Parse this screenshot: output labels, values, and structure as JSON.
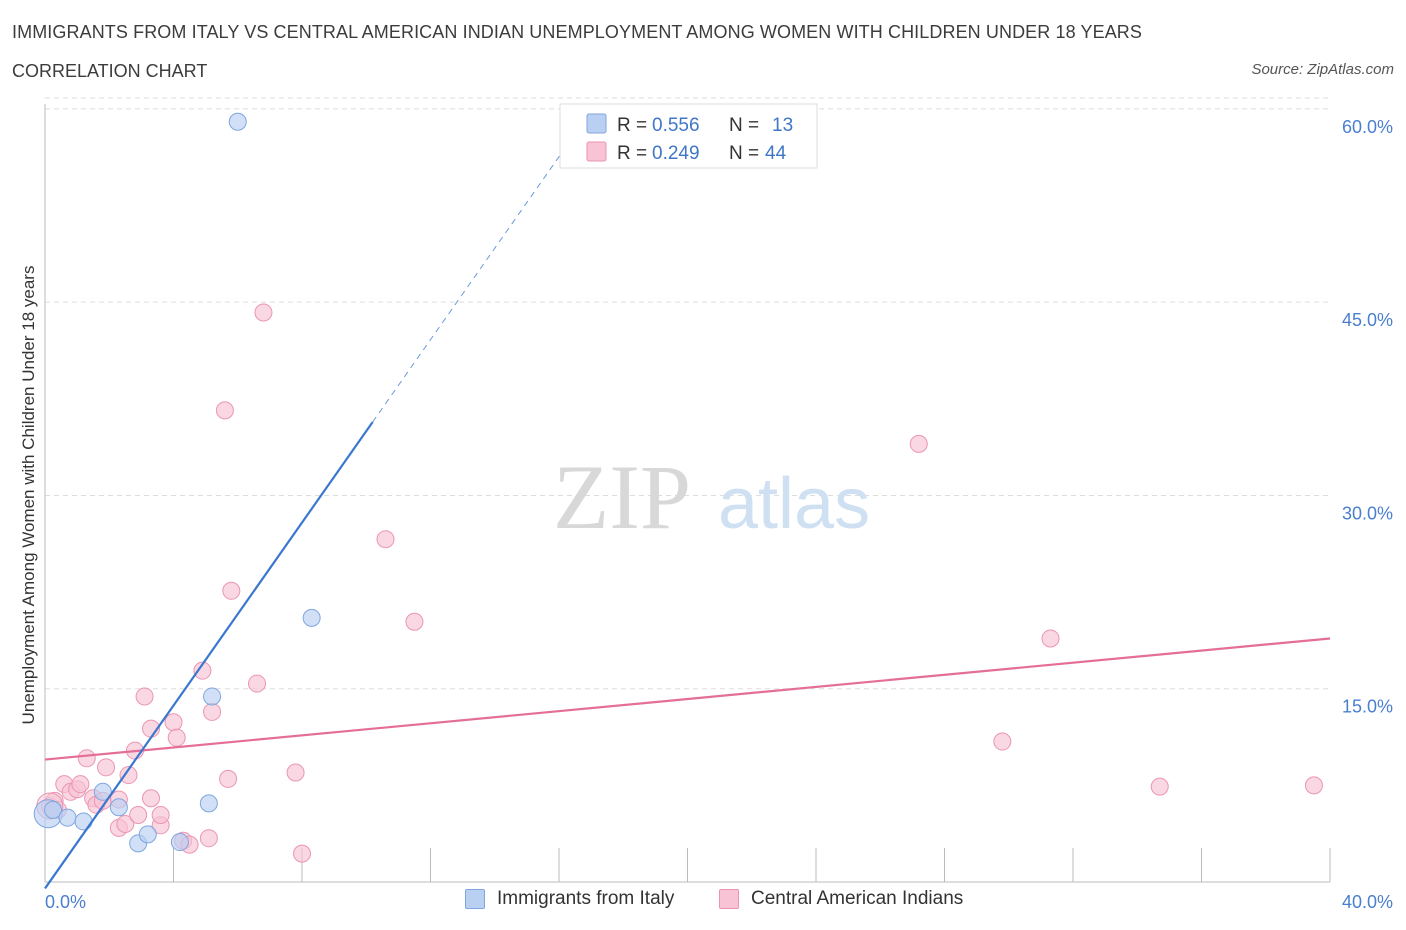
{
  "header": {
    "title": "IMMIGRANTS FROM ITALY VS CENTRAL AMERICAN INDIAN UNEMPLOYMENT AMONG WOMEN WITH CHILDREN UNDER 18 YEARS",
    "subtitle": "CORRELATION CHART",
    "source": "Source: ZipAtlas.com"
  },
  "colors": {
    "italy_fill": "#b9d0f2",
    "italy_stroke": "#7fa6dd",
    "italy_line": "#3a78d0",
    "cai_fill": "#f8c3d4",
    "cai_stroke": "#eb95b1",
    "cai_line": "#e46e98",
    "grid": "#dddddd",
    "tick_text": "#4a7fd0"
  },
  "legend_box": {
    "rows": [
      {
        "r_label": "R =",
        "r_value": "0.556",
        "n_label": "N =",
        "n_value": "13"
      },
      {
        "r_label": "R =",
        "r_value": "0.249",
        "n_label": "N =",
        "n_value": "44"
      }
    ]
  },
  "bottom_legend": {
    "italy": "Immigrants from Italy",
    "cai": "Central American Indians"
  },
  "watermark": {
    "zip": "ZIP",
    "atlas": "atlas"
  },
  "chart_data": {
    "type": "scatter",
    "title": "IMMIGRANTS FROM ITALY VS CENTRAL AMERICAN INDIAN UNEMPLOYMENT AMONG WOMEN WITH CHILDREN UNDER 18 YEARS",
    "subtitle": "CORRELATION CHART",
    "xlabel": "",
    "ylabel": "Unemployment Among Women with Children Under 18 years",
    "xlim": [
      0,
      40
    ],
    "ylim": [
      0,
      61
    ],
    "x_tick_labels": [
      "0.0%",
      "40.0%"
    ],
    "y_ticks": [
      15,
      30,
      45,
      60
    ],
    "y_tick_labels": [
      "15.0%",
      "30.0%",
      "45.0%",
      "60.0%"
    ],
    "grid": true,
    "legend_placement": "top-center",
    "series": [
      {
        "name": "Immigrants from Italy",
        "R": 0.556,
        "N": 13,
        "points": [
          {
            "x": 0.1,
            "y": 5.3
          },
          {
            "x": 0.25,
            "y": 5.6
          },
          {
            "x": 0.7,
            "y": 5.0
          },
          {
            "x": 1.2,
            "y": 4.7
          },
          {
            "x": 1.8,
            "y": 7.0
          },
          {
            "x": 2.3,
            "y": 5.8
          },
          {
            "x": 2.9,
            "y": 3.0
          },
          {
            "x": 3.2,
            "y": 3.7
          },
          {
            "x": 4.2,
            "y": 3.1
          },
          {
            "x": 5.1,
            "y": 6.1
          },
          {
            "x": 5.2,
            "y": 14.4
          },
          {
            "x": 6.0,
            "y": 59.0
          },
          {
            "x": 8.3,
            "y": 20.5
          }
        ],
        "trend": {
          "x0": 0,
          "y0": -0.5,
          "x1": 10.2,
          "y1": 35.7,
          "dashed_to_x": 17.0
        }
      },
      {
        "name": "Central American Indians",
        "R": 0.249,
        "N": 44,
        "points": [
          {
            "x": 0.15,
            "y": 5.9
          },
          {
            "x": 0.3,
            "y": 6.3
          },
          {
            "x": 0.4,
            "y": 5.6
          },
          {
            "x": 0.6,
            "y": 7.6
          },
          {
            "x": 0.8,
            "y": 7.0
          },
          {
            "x": 1.0,
            "y": 7.2
          },
          {
            "x": 1.1,
            "y": 7.6
          },
          {
            "x": 1.3,
            "y": 9.6
          },
          {
            "x": 1.5,
            "y": 6.5
          },
          {
            "x": 1.6,
            "y": 6.0
          },
          {
            "x": 1.8,
            "y": 6.3
          },
          {
            "x": 1.9,
            "y": 8.9
          },
          {
            "x": 2.3,
            "y": 6.4
          },
          {
            "x": 2.3,
            "y": 4.2
          },
          {
            "x": 2.5,
            "y": 4.5
          },
          {
            "x": 2.6,
            "y": 8.3
          },
          {
            "x": 2.8,
            "y": 10.2
          },
          {
            "x": 2.9,
            "y": 5.2
          },
          {
            "x": 3.1,
            "y": 14.4
          },
          {
            "x": 3.3,
            "y": 11.9
          },
          {
            "x": 3.3,
            "y": 6.5
          },
          {
            "x": 3.6,
            "y": 4.4
          },
          {
            "x": 3.6,
            "y": 5.2
          },
          {
            "x": 4.0,
            "y": 12.4
          },
          {
            "x": 4.1,
            "y": 11.2
          },
          {
            "x": 4.3,
            "y": 3.2
          },
          {
            "x": 4.5,
            "y": 2.9
          },
          {
            "x": 4.9,
            "y": 16.4
          },
          {
            "x": 5.2,
            "y": 13.2
          },
          {
            "x": 5.1,
            "y": 3.4
          },
          {
            "x": 5.6,
            "y": 36.6
          },
          {
            "x": 5.7,
            "y": 8.0
          },
          {
            "x": 5.8,
            "y": 22.6
          },
          {
            "x": 6.6,
            "y": 15.4
          },
          {
            "x": 6.8,
            "y": 44.2
          },
          {
            "x": 7.8,
            "y": 8.5
          },
          {
            "x": 8.0,
            "y": 2.2
          },
          {
            "x": 10.6,
            "y": 26.6
          },
          {
            "x": 11.5,
            "y": 20.2
          },
          {
            "x": 27.2,
            "y": 34.0
          },
          {
            "x": 29.8,
            "y": 10.9
          },
          {
            "x": 31.3,
            "y": 18.9
          },
          {
            "x": 34.7,
            "y": 7.4
          },
          {
            "x": 39.5,
            "y": 7.5
          }
        ],
        "trend": {
          "x0": 0,
          "y0": 9.5,
          "x1": 40,
          "y1": 18.9
        }
      }
    ]
  }
}
